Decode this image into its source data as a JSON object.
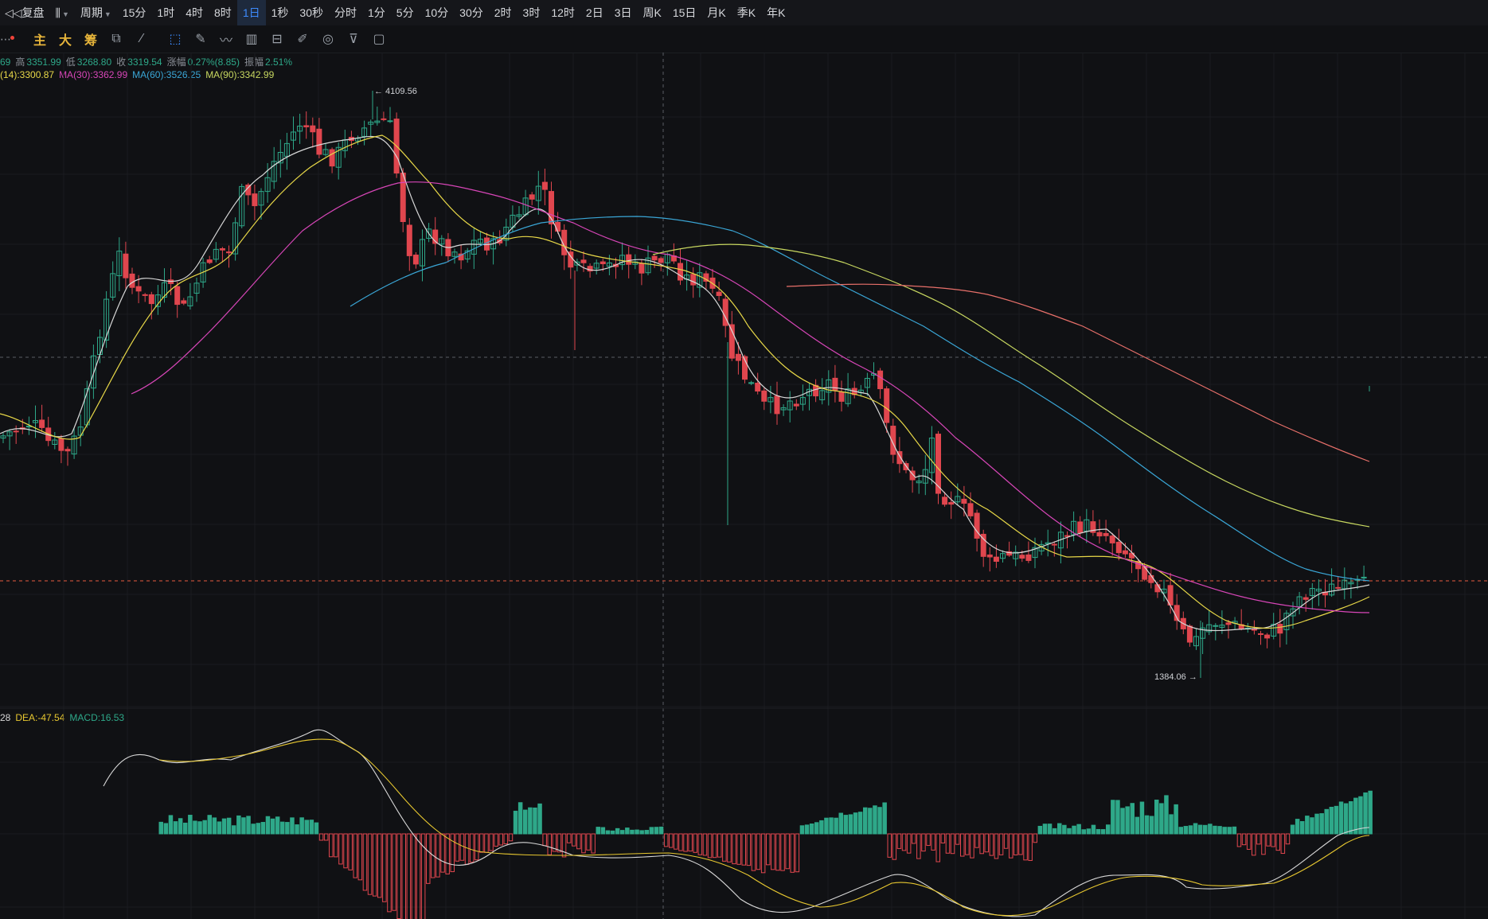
{
  "toolbar": {
    "back_label": "复盘",
    "chart_type_icon": "candlestick-icon",
    "period_label": "周期",
    "periods": [
      "15分",
      "1时",
      "4时",
      "8时",
      "1日",
      "1秒",
      "30秒",
      "分时",
      "1分",
      "5分",
      "10分",
      "30分",
      "2时",
      "3时",
      "12时",
      "2日",
      "3日",
      "周K",
      "15日",
      "月K",
      "季K",
      "年K"
    ],
    "active_period": "1日"
  },
  "toolbar2": {
    "indicator_main": "主",
    "indicator_big": "大",
    "indicator_chip": "筹",
    "tools": [
      "indicator-settings-icon",
      "magic-draw-icon",
      "select-draw-icon",
      "ruler-icon",
      "pen-icon",
      "candle-tool-icon",
      "lock-icon",
      "edit-icon",
      "magnet-icon",
      "filter-icon",
      "trash-icon"
    ]
  },
  "ohlc": {
    "open_partial": "69",
    "high_label": "高",
    "high": "3351.99",
    "low_label": "低",
    "low": "3268.80",
    "close_label": "收",
    "close": "3319.54",
    "change_label": "涨幅",
    "change": "0.27%(8.85)",
    "amp_label": "振幅",
    "amp": "2.51%"
  },
  "ma": {
    "ma14": "(14):3300.87",
    "ma30": "MA(30):3362.99",
    "ma60": "MA(60):3526.25",
    "ma90": "MA(90):3342.99"
  },
  "macd": {
    "dif_partial": "28",
    "dea": "DEA:-47.54",
    "macd": "MACD:16.53"
  },
  "annotations": {
    "high_mark": "← 4109.56",
    "low_mark": "1384.06 →"
  },
  "colors": {
    "up": "#2ea889",
    "down": "#e0464e",
    "ma_white": "#d8d8d8",
    "ma_yellow": "#e8d848",
    "ma_magenta": "#d846b8",
    "ma_blue": "#3aa6d6",
    "ma_olive": "#c8d860",
    "ma_salmon": "#e8706a",
    "dea": "#e8c830"
  },
  "chart_data": {
    "type": "candlestick",
    "interval": "1日",
    "price_extremes": {
      "high": 4109.56,
      "low": 1384.06
    },
    "last_close": 3319.54
  }
}
